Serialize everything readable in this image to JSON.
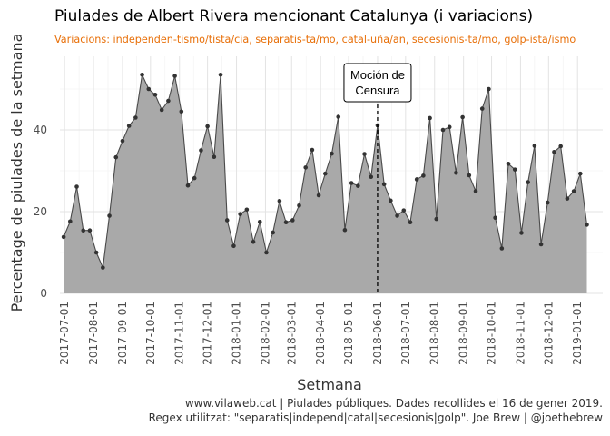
{
  "chart_data": {
    "type": "area",
    "title": "Piulades de Albert Rivera mencionant Catalunya (i variacions)",
    "subtitle": "Variacions: independen-tismo/tista/cia, separatis-ta/mo, catal-uña/an, secesionis-ta/mo, golp-ista/ismo",
    "xlabel": "Setmana",
    "ylabel": "Percentage de piulades de la setmana",
    "ylim": [
      0,
      58
    ],
    "yticks": [
      0,
      20,
      40
    ],
    "xlim": [
      "2017-06-26",
      "2019-01-28"
    ],
    "xticks": [
      "2017-07-01",
      "2017-08-01",
      "2017-09-01",
      "2017-10-01",
      "2017-11-01",
      "2017-12-01",
      "2018-01-01",
      "2018-02-01",
      "2018-03-01",
      "2018-04-01",
      "2018-05-01",
      "2018-06-01",
      "2018-07-01",
      "2018-08-01",
      "2018-09-01",
      "2018-10-01",
      "2018-11-01",
      "2018-12-01",
      "2019-01-01"
    ],
    "grid": true,
    "fill_color": "#a9a9a9",
    "line_color": "#4a4a4a",
    "point_color": "#333333",
    "annotation": {
      "x": "2018-06-01",
      "label_lines": [
        "Moción de",
        "Censura"
      ],
      "line_style": "dashed"
    },
    "points": [
      [
        "2017-06-30",
        13.8
      ],
      [
        "2017-07-07",
        17.6
      ],
      [
        "2017-07-14",
        26.1
      ],
      [
        "2017-07-21",
        15.4
      ],
      [
        "2017-07-28",
        15.4
      ],
      [
        "2017-08-04",
        10.0
      ],
      [
        "2017-08-11",
        6.3
      ],
      [
        "2017-08-18",
        19.0
      ],
      [
        "2017-08-25",
        33.3
      ],
      [
        "2017-09-01",
        37.3
      ],
      [
        "2017-09-08",
        41.0
      ],
      [
        "2017-09-15",
        43.0
      ],
      [
        "2017-09-22",
        53.5
      ],
      [
        "2017-09-29",
        50.0
      ],
      [
        "2017-10-06",
        48.6
      ],
      [
        "2017-10-13",
        44.9
      ],
      [
        "2017-10-20",
        47.1
      ],
      [
        "2017-10-27",
        53.2
      ],
      [
        "2017-11-03",
        44.5
      ],
      [
        "2017-11-10",
        26.4
      ],
      [
        "2017-11-17",
        28.2
      ],
      [
        "2017-11-24",
        35.0
      ],
      [
        "2017-12-01",
        40.9
      ],
      [
        "2017-12-08",
        33.4
      ],
      [
        "2017-12-15",
        53.5
      ],
      [
        "2017-12-22",
        17.9
      ],
      [
        "2017-12-29",
        11.6
      ],
      [
        "2018-01-05",
        19.4
      ],
      [
        "2018-01-12",
        20.5
      ],
      [
        "2018-01-19",
        12.6
      ],
      [
        "2018-01-26",
        17.5
      ],
      [
        "2018-02-02",
        10.0
      ],
      [
        "2018-02-09",
        14.9
      ],
      [
        "2018-02-16",
        22.6
      ],
      [
        "2018-02-23",
        17.4
      ],
      [
        "2018-03-02",
        17.9
      ],
      [
        "2018-03-09",
        21.5
      ],
      [
        "2018-03-16",
        30.8
      ],
      [
        "2018-03-23",
        35.1
      ],
      [
        "2018-03-30",
        24.0
      ],
      [
        "2018-04-06",
        29.3
      ],
      [
        "2018-04-13",
        34.2
      ],
      [
        "2018-04-20",
        43.2
      ],
      [
        "2018-04-27",
        15.5
      ],
      [
        "2018-05-04",
        27.0
      ],
      [
        "2018-05-11",
        26.3
      ],
      [
        "2018-05-18",
        34.1
      ],
      [
        "2018-05-25",
        28.5
      ],
      [
        "2018-06-01",
        41.1
      ],
      [
        "2018-06-08",
        26.7
      ],
      [
        "2018-06-15",
        22.7
      ],
      [
        "2018-06-22",
        19.0
      ],
      [
        "2018-06-29",
        20.3
      ],
      [
        "2018-07-06",
        17.4
      ],
      [
        "2018-07-13",
        27.9
      ],
      [
        "2018-07-20",
        28.8
      ],
      [
        "2018-07-27",
        42.9
      ],
      [
        "2018-08-03",
        18.2
      ],
      [
        "2018-08-10",
        40.0
      ],
      [
        "2018-08-17",
        40.7
      ],
      [
        "2018-08-24",
        29.5
      ],
      [
        "2018-08-31",
        43.1
      ],
      [
        "2018-09-07",
        28.9
      ],
      [
        "2018-09-14",
        25.0
      ],
      [
        "2018-09-21",
        45.2
      ],
      [
        "2018-09-28",
        50.0
      ],
      [
        "2018-10-05",
        18.5
      ],
      [
        "2018-10-12",
        11.0
      ],
      [
        "2018-10-19",
        31.7
      ],
      [
        "2018-10-26",
        30.3
      ],
      [
        "2018-11-02",
        14.8
      ],
      [
        "2018-11-09",
        27.2
      ],
      [
        "2018-11-16",
        36.1
      ],
      [
        "2018-11-23",
        12.0
      ],
      [
        "2018-11-30",
        22.2
      ],
      [
        "2018-12-07",
        34.6
      ],
      [
        "2018-12-14",
        36.0
      ],
      [
        "2018-12-21",
        23.2
      ],
      [
        "2018-12-28",
        25.0
      ],
      [
        "2019-01-04",
        29.3
      ],
      [
        "2019-01-11",
        16.8
      ]
    ]
  },
  "caption": {
    "line1": "www.vilaweb.cat | Piulades públiques. Dades recollides el 16 de gener 2019.",
    "line2": "Regex utilitzat: \"separatis|independ|catal|secesionis|golp\". Joe Brew | @joethebrew"
  }
}
